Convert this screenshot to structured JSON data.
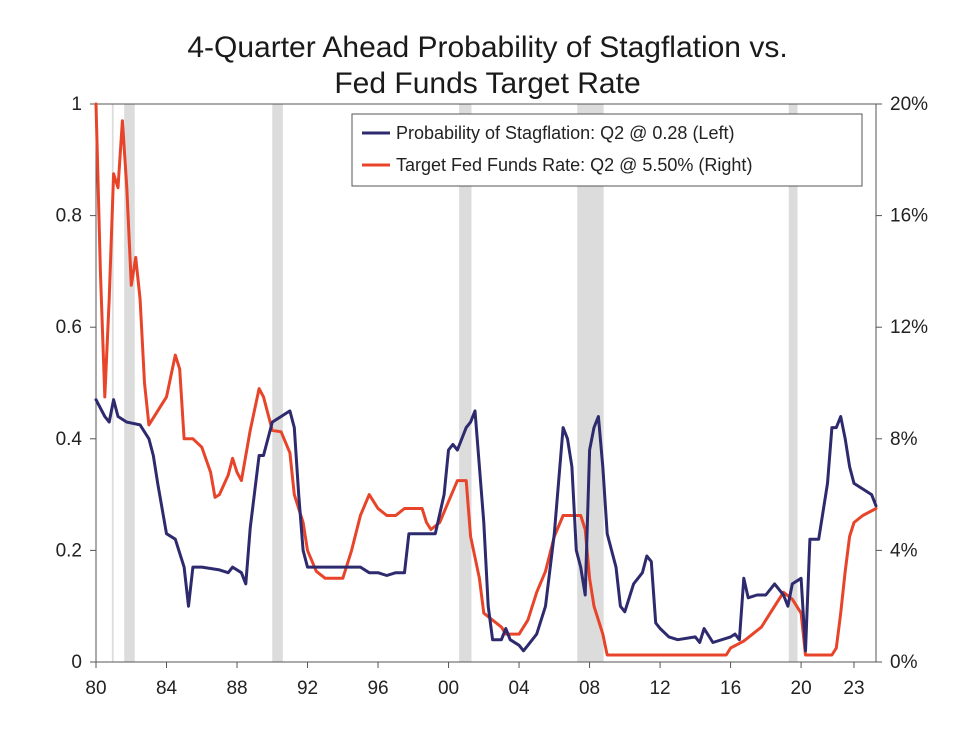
{
  "chart_data": {
    "type": "line",
    "title_line1": "4-Quarter Ahead Probability of Stagflation vs.",
    "title_line2": "Fed Funds Target Rate",
    "x_ticks": [
      "80",
      "84",
      "88",
      "92",
      "96",
      "00",
      "04",
      "08",
      "12",
      "16",
      "20",
      "23"
    ],
    "x_tick_values": [
      1980,
      1984,
      1988,
      1992,
      1996,
      2000,
      2004,
      2008,
      2012,
      2016,
      2020,
      2023
    ],
    "xlim": [
      1980,
      2024.25
    ],
    "left_axis": {
      "ticks": [
        "0",
        "0.2",
        "0.4",
        "0.6",
        "0.8",
        "1"
      ],
      "values": [
        0,
        0.2,
        0.4,
        0.6,
        0.8,
        1
      ],
      "ylim": [
        0,
        1
      ]
    },
    "right_axis": {
      "ticks": [
        "0%",
        "4%",
        "8%",
        "12%",
        "16%",
        "20%"
      ],
      "values": [
        0,
        4,
        8,
        12,
        16,
        20
      ],
      "ylim": [
        0,
        20
      ]
    },
    "recessions": [
      [
        1980.9,
        1981.0
      ],
      [
        1981.6,
        1982.2
      ],
      [
        1990.0,
        1990.6
      ],
      [
        2000.6,
        2001.3
      ],
      [
        2007.3,
        2008.8
      ],
      [
        2019.3,
        2019.8
      ]
    ],
    "legend_position": "top-right",
    "series": [
      {
        "name": "Probability of Stagflation: Q2 @ 0.28 (Left)",
        "axis": "left",
        "color": "#2e2a6e",
        "points": [
          [
            1980.0,
            0.47
          ],
          [
            1980.5,
            0.44
          ],
          [
            1980.75,
            0.43
          ],
          [
            1981.0,
            0.47
          ],
          [
            1981.25,
            0.44
          ],
          [
            1981.75,
            0.43
          ],
          [
            1982.5,
            0.425
          ],
          [
            1983.0,
            0.4
          ],
          [
            1983.25,
            0.37
          ],
          [
            1983.5,
            0.32
          ],
          [
            1984.0,
            0.23
          ],
          [
            1984.5,
            0.22
          ],
          [
            1985.0,
            0.17
          ],
          [
            1985.25,
            0.1
          ],
          [
            1985.5,
            0.17
          ],
          [
            1986.0,
            0.17
          ],
          [
            1987.0,
            0.165
          ],
          [
            1987.5,
            0.16
          ],
          [
            1987.75,
            0.17
          ],
          [
            1988.25,
            0.16
          ],
          [
            1988.5,
            0.14
          ],
          [
            1988.75,
            0.24
          ],
          [
            1989.25,
            0.37
          ],
          [
            1989.5,
            0.37
          ],
          [
            1990.0,
            0.43
          ],
          [
            1990.5,
            0.44
          ],
          [
            1991.0,
            0.45
          ],
          [
            1991.25,
            0.42
          ],
          [
            1991.5,
            0.3
          ],
          [
            1991.75,
            0.2
          ],
          [
            1992.0,
            0.17
          ],
          [
            1993.0,
            0.17
          ],
          [
            1994.0,
            0.17
          ],
          [
            1995.0,
            0.17
          ],
          [
            1995.5,
            0.16
          ],
          [
            1996.0,
            0.16
          ],
          [
            1996.5,
            0.155
          ],
          [
            1997.0,
            0.16
          ],
          [
            1997.5,
            0.16
          ],
          [
            1997.75,
            0.23
          ],
          [
            1998.5,
            0.23
          ],
          [
            1999.25,
            0.23
          ],
          [
            1999.75,
            0.3
          ],
          [
            2000.0,
            0.38
          ],
          [
            2000.25,
            0.39
          ],
          [
            2000.5,
            0.38
          ],
          [
            2001.0,
            0.42
          ],
          [
            2001.25,
            0.43
          ],
          [
            2001.5,
            0.45
          ],
          [
            2002.0,
            0.25
          ],
          [
            2002.25,
            0.1
          ],
          [
            2002.5,
            0.04
          ],
          [
            2003.0,
            0.04
          ],
          [
            2003.25,
            0.06
          ],
          [
            2003.5,
            0.04
          ],
          [
            2004.0,
            0.03
          ],
          [
            2004.25,
            0.02
          ],
          [
            2004.5,
            0.03
          ],
          [
            2005.0,
            0.05
          ],
          [
            2005.5,
            0.1
          ],
          [
            2006.0,
            0.23
          ],
          [
            2006.5,
            0.42
          ],
          [
            2006.75,
            0.4
          ],
          [
            2007.0,
            0.35
          ],
          [
            2007.25,
            0.2
          ],
          [
            2007.5,
            0.17
          ],
          [
            2007.75,
            0.12
          ],
          [
            2008.0,
            0.38
          ],
          [
            2008.25,
            0.42
          ],
          [
            2008.5,
            0.44
          ],
          [
            2008.75,
            0.35
          ],
          [
            2009.0,
            0.23
          ],
          [
            2009.5,
            0.17
          ],
          [
            2009.75,
            0.1
          ],
          [
            2010.0,
            0.09
          ],
          [
            2010.5,
            0.14
          ],
          [
            2011.0,
            0.16
          ],
          [
            2011.25,
            0.19
          ],
          [
            2011.5,
            0.18
          ],
          [
            2011.75,
            0.07
          ],
          [
            2012.0,
            0.06
          ],
          [
            2012.5,
            0.045
          ],
          [
            2013.0,
            0.04
          ],
          [
            2014.0,
            0.045
          ],
          [
            2014.25,
            0.035
          ],
          [
            2014.5,
            0.06
          ],
          [
            2015.0,
            0.035
          ],
          [
            2016.0,
            0.045
          ],
          [
            2016.25,
            0.05
          ],
          [
            2016.5,
            0.04
          ],
          [
            2016.75,
            0.15
          ],
          [
            2017.0,
            0.115
          ],
          [
            2017.5,
            0.12
          ],
          [
            2018.0,
            0.12
          ],
          [
            2018.5,
            0.14
          ],
          [
            2019.0,
            0.12
          ],
          [
            2019.25,
            0.1
          ],
          [
            2019.5,
            0.14
          ],
          [
            2020.0,
            0.15
          ],
          [
            2020.25,
            0.02
          ],
          [
            2020.5,
            0.22
          ],
          [
            2021.0,
            0.22
          ],
          [
            2021.5,
            0.32
          ],
          [
            2021.75,
            0.42
          ],
          [
            2022.0,
            0.42
          ],
          [
            2022.25,
            0.44
          ],
          [
            2022.5,
            0.4
          ],
          [
            2022.75,
            0.35
          ],
          [
            2023.0,
            0.32
          ],
          [
            2023.5,
            0.31
          ],
          [
            2024.0,
            0.3
          ],
          [
            2024.25,
            0.28
          ]
        ]
      },
      {
        "name": "Target Fed Funds Rate: Q2 @ 5.50% (Right)",
        "axis": "right",
        "color": "#e8442a",
        "points": [
          [
            1980.0,
            20.0
          ],
          [
            1980.25,
            14.0
          ],
          [
            1980.5,
            9.5
          ],
          [
            1980.75,
            13.0
          ],
          [
            1981.0,
            17.5
          ],
          [
            1981.25,
            17.0
          ],
          [
            1981.5,
            19.4
          ],
          [
            1981.75,
            17.0
          ],
          [
            1982.0,
            13.5
          ],
          [
            1982.25,
            14.5
          ],
          [
            1982.5,
            13.0
          ],
          [
            1982.75,
            10.0
          ],
          [
            1983.0,
            8.5
          ],
          [
            1983.5,
            9.0
          ],
          [
            1984.0,
            9.5
          ],
          [
            1984.5,
            11.0
          ],
          [
            1984.75,
            10.5
          ],
          [
            1985.0,
            8.0
          ],
          [
            1985.5,
            8.0
          ],
          [
            1986.0,
            7.7
          ],
          [
            1986.5,
            6.8
          ],
          [
            1986.75,
            5.9
          ],
          [
            1987.0,
            6.0
          ],
          [
            1987.5,
            6.7
          ],
          [
            1987.75,
            7.3
          ],
          [
            1988.0,
            6.8
          ],
          [
            1988.25,
            6.5
          ],
          [
            1988.75,
            8.3
          ],
          [
            1989.25,
            9.8
          ],
          [
            1989.5,
            9.5
          ],
          [
            1990.0,
            8.3
          ],
          [
            1990.5,
            8.25
          ],
          [
            1991.0,
            7.5
          ],
          [
            1991.25,
            6.0
          ],
          [
            1991.75,
            5.0
          ],
          [
            1992.0,
            4.0
          ],
          [
            1992.5,
            3.25
          ],
          [
            1993.0,
            3.0
          ],
          [
            1994.0,
            3.0
          ],
          [
            1994.5,
            4.0
          ],
          [
            1995.0,
            5.25
          ],
          [
            1995.5,
            6.0
          ],
          [
            1996.0,
            5.5
          ],
          [
            1996.5,
            5.25
          ],
          [
            1997.0,
            5.25
          ],
          [
            1997.5,
            5.5
          ],
          [
            1998.0,
            5.5
          ],
          [
            1998.5,
            5.5
          ],
          [
            1998.75,
            5.0
          ],
          [
            1999.0,
            4.75
          ],
          [
            1999.5,
            5.0
          ],
          [
            2000.0,
            5.75
          ],
          [
            2000.5,
            6.5
          ],
          [
            2001.0,
            6.5
          ],
          [
            2001.25,
            4.5
          ],
          [
            2001.75,
            3.0
          ],
          [
            2002.0,
            1.75
          ],
          [
            2003.0,
            1.25
          ],
          [
            2003.25,
            1.0
          ],
          [
            2004.0,
            1.0
          ],
          [
            2004.5,
            1.5
          ],
          [
            2005.0,
            2.5
          ],
          [
            2005.5,
            3.25
          ],
          [
            2006.0,
            4.5
          ],
          [
            2006.5,
            5.25
          ],
          [
            2007.0,
            5.25
          ],
          [
            2007.5,
            5.25
          ],
          [
            2007.75,
            4.75
          ],
          [
            2008.0,
            3.0
          ],
          [
            2008.25,
            2.0
          ],
          [
            2008.75,
            1.0
          ],
          [
            2009.0,
            0.25
          ],
          [
            2015.75,
            0.25
          ],
          [
            2016.0,
            0.5
          ],
          [
            2016.75,
            0.75
          ],
          [
            2017.25,
            1.0
          ],
          [
            2017.75,
            1.25
          ],
          [
            2018.0,
            1.5
          ],
          [
            2018.5,
            2.0
          ],
          [
            2019.0,
            2.5
          ],
          [
            2019.5,
            2.25
          ],
          [
            2020.0,
            1.75
          ],
          [
            2020.25,
            0.25
          ],
          [
            2021.75,
            0.25
          ],
          [
            2022.0,
            0.5
          ],
          [
            2022.25,
            1.75
          ],
          [
            2022.5,
            3.25
          ],
          [
            2022.75,
            4.5
          ],
          [
            2023.0,
            5.0
          ],
          [
            2023.5,
            5.25
          ],
          [
            2024.25,
            5.5
          ]
        ]
      }
    ]
  }
}
